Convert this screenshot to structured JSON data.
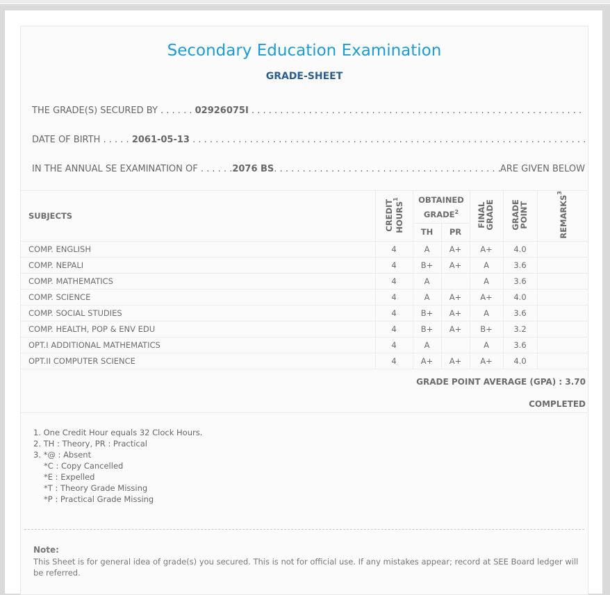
{
  "header": {
    "title": "Secondary Education Examination",
    "subtitle": "GRADE-SHEET"
  },
  "info": {
    "secured_by_label": "THE GRADE(S) SECURED BY . . . . . . ",
    "symbol_no": "02926075I",
    "dob_label": "DATE OF BIRTH . . . . . ",
    "dob": "2061-05-13",
    "exam_label": "IN THE ANNUAL SE EXAMINATION OF . . . . . . ",
    "exam_year": "2076 BS",
    "exam_suffix": "ARE GIVEN BELOW"
  },
  "table": {
    "headers": {
      "subjects": "SUBJECTS",
      "credit": "CREDIT HOURS",
      "credit_sup": "1",
      "obtained": "OBTAINED GRADE",
      "obtained_sup": "2",
      "th": "TH",
      "pr": "PR",
      "final": "FINAL GRADE",
      "point": "GRADE POINT",
      "remarks": "REMARKS",
      "remarks_sup": "3"
    },
    "rows": [
      {
        "subject": "COMP. ENGLISH",
        "credit": "4",
        "th": "A",
        "pr": "A+",
        "final": "A+",
        "point": "4.0",
        "remarks": ""
      },
      {
        "subject": "COMP. NEPALI",
        "credit": "4",
        "th": "B+",
        "pr": "A+",
        "final": "A",
        "point": "3.6",
        "remarks": ""
      },
      {
        "subject": "COMP. MATHEMATICS",
        "credit": "4",
        "th": "A",
        "pr": "",
        "final": "A",
        "point": "3.6",
        "remarks": ""
      },
      {
        "subject": "COMP. SCIENCE",
        "credit": "4",
        "th": "A",
        "pr": "A+",
        "final": "A+",
        "point": "4.0",
        "remarks": ""
      },
      {
        "subject": "COMP. SOCIAL STUDIES",
        "credit": "4",
        "th": "B+",
        "pr": "A+",
        "final": "A",
        "point": "3.6",
        "remarks": ""
      },
      {
        "subject": "COMP. HEALTH, POP & ENV EDU",
        "credit": "4",
        "th": "B+",
        "pr": "A+",
        "final": "B+",
        "point": "3.2",
        "remarks": ""
      },
      {
        "subject": "OPT.I ADDITIONAL MATHEMATICS",
        "credit": "4",
        "th": "A",
        "pr": "",
        "final": "A",
        "point": "3.6",
        "remarks": ""
      },
      {
        "subject": "OPT.II COMPUTER SCIENCE",
        "credit": "4",
        "th": "A+",
        "pr": "A+",
        "final": "A+",
        "point": "4.0",
        "remarks": ""
      }
    ]
  },
  "summary": {
    "gpa_label": "GRADE POINT AVERAGE (GPA) : ",
    "gpa": "3.70",
    "status": "COMPLETED"
  },
  "notes": [
    "1. One Credit Hour equals 32 Clock Hours.",
    "2. TH : Theory, PR : Practical",
    "3. *@ : Absent",
    "*C : Copy Cancelled",
    "*E : Expelled",
    "*T : Theory Grade Missing",
    "*P : Practical Grade Missing"
  ],
  "footer": {
    "note_heading": "Note:",
    "note_text": "This Sheet is for general idea of grade(s) you secured. This is not for official use. If any mistakes appear; record at SEE Board ledger will be referred."
  },
  "colors": {
    "title": "#1e9ccf",
    "subtitle": "#2c5d8f",
    "text": "#6b6b6b"
  }
}
